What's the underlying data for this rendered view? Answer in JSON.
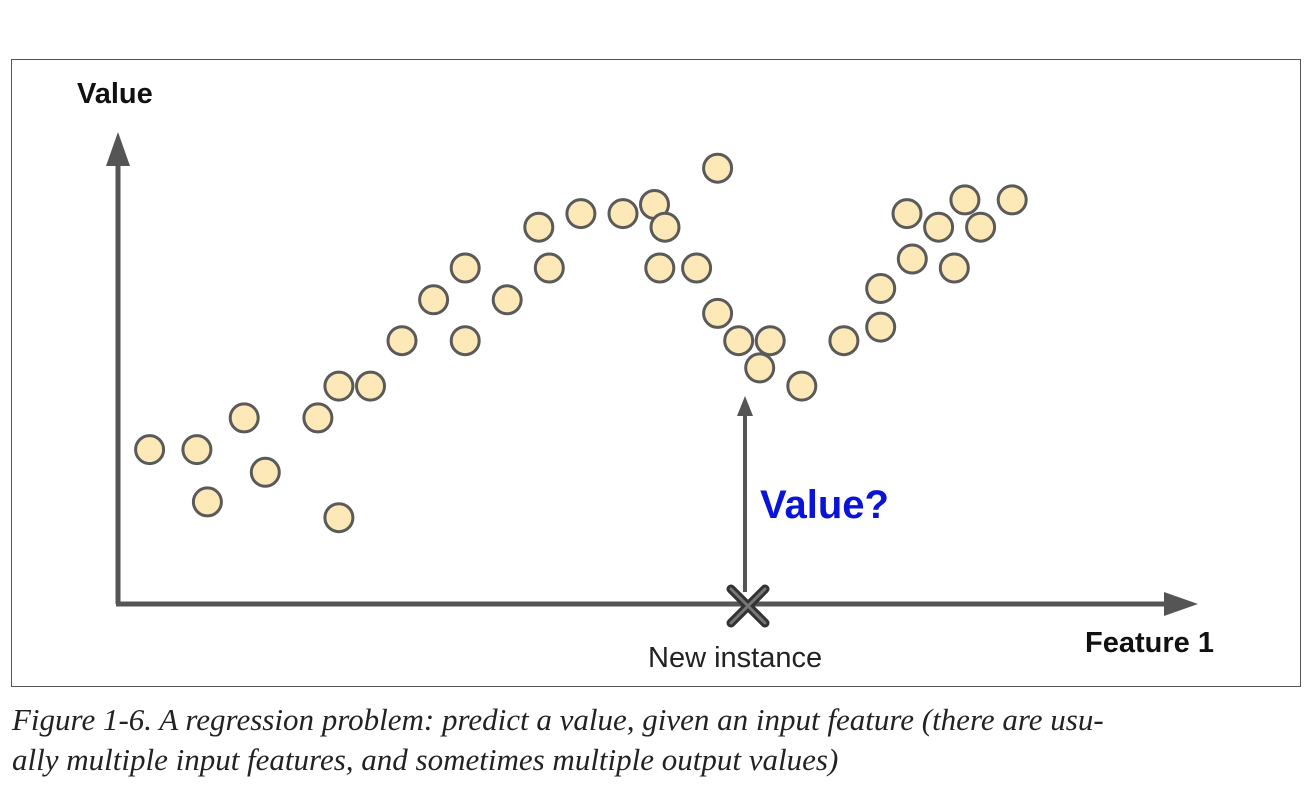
{
  "figure": {
    "y_axis_label": "Value",
    "x_axis_label": "Feature 1",
    "new_instance_label": "New instance",
    "query_label": "Value?",
    "colors": {
      "axis": "#555555",
      "point_fill": "#fde9b8",
      "point_stroke": "#5a5a5a",
      "query_text": "#0a14d8",
      "marker": "#333333"
    },
    "markers": {
      "data_point": "circle-marker",
      "new_instance": "x-marker-icon",
      "arrow": "arrow-up-icon"
    }
  },
  "chart_data": {
    "type": "scatter",
    "title": "",
    "xlabel": "Feature 1",
    "ylabel": "Value",
    "xlim": [
      0,
      100
    ],
    "ylim": [
      0,
      100
    ],
    "grid": false,
    "points": [
      {
        "x": 3,
        "y": 34
      },
      {
        "x": 7.5,
        "y": 34
      },
      {
        "x": 8.5,
        "y": 22.5
      },
      {
        "x": 12,
        "y": 41
      },
      {
        "x": 14,
        "y": 29
      },
      {
        "x": 19,
        "y": 41
      },
      {
        "x": 21,
        "y": 48
      },
      {
        "x": 21,
        "y": 19
      },
      {
        "x": 24,
        "y": 48
      },
      {
        "x": 27,
        "y": 58
      },
      {
        "x": 30,
        "y": 67
      },
      {
        "x": 33,
        "y": 74
      },
      {
        "x": 33,
        "y": 58
      },
      {
        "x": 37,
        "y": 67
      },
      {
        "x": 40,
        "y": 83
      },
      {
        "x": 41,
        "y": 74
      },
      {
        "x": 44,
        "y": 86
      },
      {
        "x": 48,
        "y": 86
      },
      {
        "x": 51,
        "y": 88
      },
      {
        "x": 52,
        "y": 83
      },
      {
        "x": 51.5,
        "y": 74
      },
      {
        "x": 55,
        "y": 74
      },
      {
        "x": 57,
        "y": 96
      },
      {
        "x": 57,
        "y": 64
      },
      {
        "x": 59,
        "y": 58
      },
      {
        "x": 61,
        "y": 52
      },
      {
        "x": 62,
        "y": 58
      },
      {
        "x": 65,
        "y": 48
      },
      {
        "x": 69,
        "y": 58
      },
      {
        "x": 72.5,
        "y": 61
      },
      {
        "x": 72.5,
        "y": 69.5
      },
      {
        "x": 75,
        "y": 86
      },
      {
        "x": 75.5,
        "y": 76
      },
      {
        "x": 78,
        "y": 83
      },
      {
        "x": 79.5,
        "y": 74
      },
      {
        "x": 80.5,
        "y": 89
      },
      {
        "x": 82,
        "y": 83
      },
      {
        "x": 85,
        "y": 89
      }
    ],
    "new_instance": {
      "x": 57.5,
      "y": 0
    }
  },
  "caption": {
    "line1": "Figure 1-6. A regression problem: predict a value, given an input feature (there are usu-",
    "line2": "ally multiple input features, and sometimes multiple output values)"
  }
}
